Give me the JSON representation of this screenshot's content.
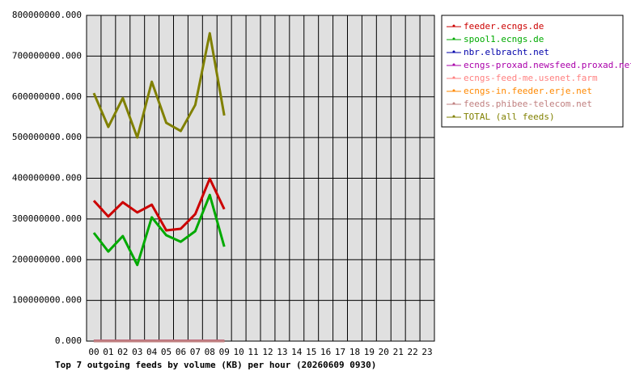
{
  "chart_data": {
    "type": "line",
    "title": "Top 7 outgoing feeds by volume (KB) per hour (20260609 0930)",
    "categories": [
      "00",
      "01",
      "02",
      "03",
      "04",
      "05",
      "06",
      "07",
      "08",
      "09",
      "10",
      "11",
      "12",
      "13",
      "14",
      "15",
      "16",
      "17",
      "18",
      "19",
      "20",
      "21",
      "22",
      "23"
    ],
    "series": [
      {
        "name": "feeder.ecngs.de",
        "color": "#cc0000",
        "values": [
          345000000,
          306000000,
          341000000,
          316000000,
          335000000,
          272000000,
          276000000,
          312000000,
          399000000,
          324000000,
          null,
          null,
          null,
          null,
          null,
          null,
          null,
          null,
          null,
          null,
          null,
          null,
          null,
          null
        ]
      },
      {
        "name": "spool1.ecngs.de",
        "color": "#00aa00",
        "values": [
          266000000,
          220000000,
          258000000,
          187000000,
          304000000,
          260000000,
          244000000,
          270000000,
          359000000,
          232000000,
          null,
          null,
          null,
          null,
          null,
          null,
          null,
          null,
          null,
          null,
          null,
          null,
          null,
          null
        ]
      },
      {
        "name": "nbr.elbracht.net",
        "color": "#0000aa",
        "values": [
          500000,
          500000,
          500000,
          500000,
          500000,
          500000,
          500000,
          500000,
          500000,
          500000,
          null,
          null,
          null,
          null,
          null,
          null,
          null,
          null,
          null,
          null,
          null,
          null,
          null,
          null
        ]
      },
      {
        "name": "ecngs-proxad.newsfeed.proxad.net",
        "color": "#aa00aa",
        "values": [
          400000,
          400000,
          400000,
          400000,
          400000,
          400000,
          400000,
          400000,
          400000,
          400000,
          null,
          null,
          null,
          null,
          null,
          null,
          null,
          null,
          null,
          null,
          null,
          null,
          null,
          null
        ]
      },
      {
        "name": "ecngs-feed-me.usenet.farm",
        "color": "#ff8080",
        "values": [
          300000,
          300000,
          300000,
          300000,
          300000,
          300000,
          300000,
          300000,
          300000,
          300000,
          null,
          null,
          null,
          null,
          null,
          null,
          null,
          null,
          null,
          null,
          null,
          null,
          null,
          null
        ]
      },
      {
        "name": "ecngs-in.feeder.erje.net",
        "color": "#ff8800",
        "values": [
          200000,
          200000,
          200000,
          200000,
          200000,
          200000,
          200000,
          200000,
          200000,
          200000,
          null,
          null,
          null,
          null,
          null,
          null,
          null,
          null,
          null,
          null,
          null,
          null,
          null,
          null
        ]
      },
      {
        "name": "feeds.phibee-telecom.net",
        "color": "#c08080",
        "values": [
          100000,
          100000,
          100000,
          100000,
          100000,
          100000,
          100000,
          100000,
          100000,
          100000,
          null,
          null,
          null,
          null,
          null,
          null,
          null,
          null,
          null,
          null,
          null,
          null,
          null,
          null
        ]
      },
      {
        "name": "TOTAL (all feeds)",
        "color": "#808000",
        "values": [
          609000000,
          526000000,
          597000000,
          500000000,
          637000000,
          536000000,
          516000000,
          580000000,
          756000000,
          554000000,
          null,
          null,
          null,
          null,
          null,
          null,
          null,
          null,
          null,
          null,
          null,
          null,
          null,
          null
        ]
      }
    ],
    "ylim": [
      0,
      800000000
    ],
    "yticks": [
      {
        "value": 0,
        "label": "0.000"
      },
      {
        "value": 100000000,
        "label": "100000000.000"
      },
      {
        "value": 200000000,
        "label": "200000000.000"
      },
      {
        "value": 300000000,
        "label": "300000000.000"
      },
      {
        "value": 400000000,
        "label": "400000000.000"
      },
      {
        "value": 500000000,
        "label": "500000000.000"
      },
      {
        "value": 600000000,
        "label": "600000000.000"
      },
      {
        "value": 700000000,
        "label": "700000000.000"
      },
      {
        "value": 800000000,
        "label": "800000000.000"
      }
    ],
    "grid": true,
    "legend": "right"
  }
}
